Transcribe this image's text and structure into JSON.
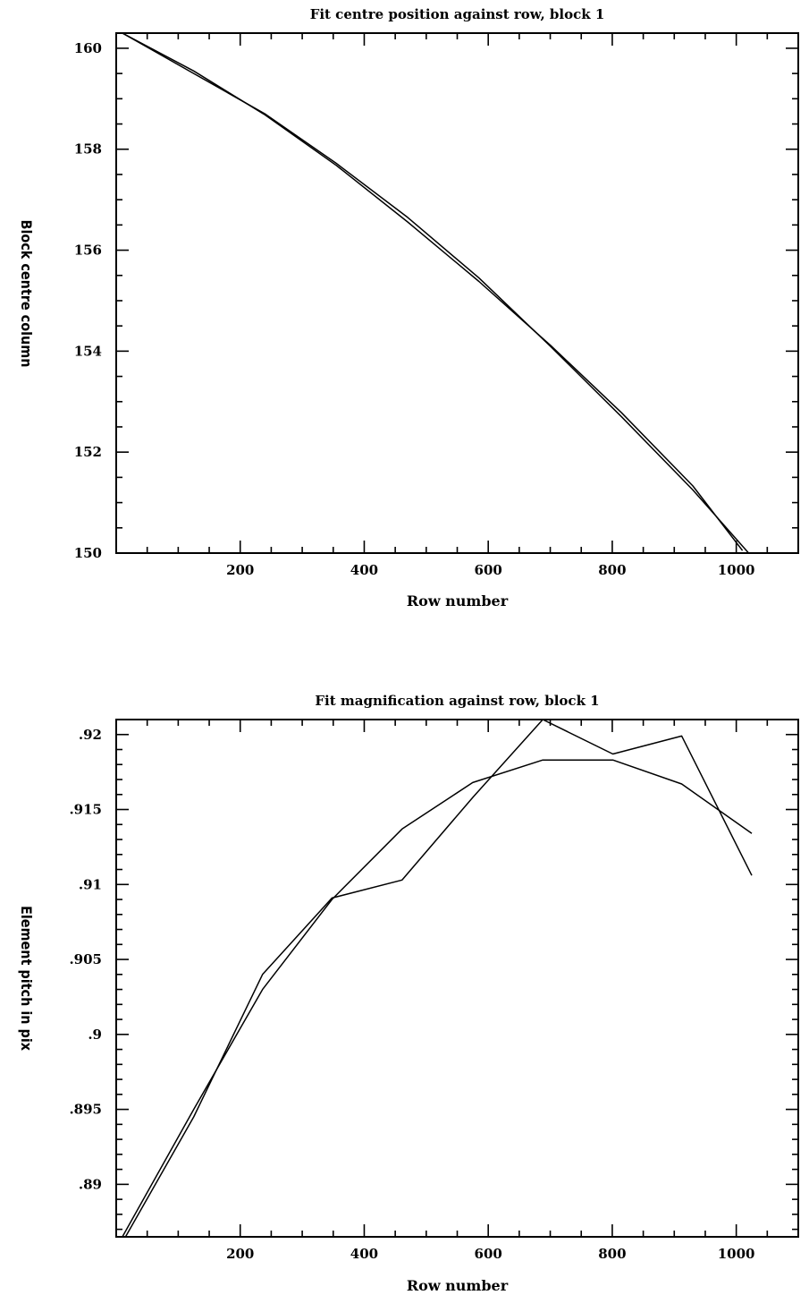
{
  "chart_data": [
    {
      "type": "line",
      "title": "Fit centre position against row, block 1",
      "xlabel": "Row number",
      "ylabel": "Block centre column",
      "xlim": [
        0,
        1100
      ],
      "ylim": [
        150,
        160.3
      ],
      "x_ticks": [
        200,
        400,
        600,
        800,
        1000
      ],
      "x_ticklabels": [
        "200",
        "400",
        "600",
        "800",
        "1000"
      ],
      "y_ticks": [
        150,
        152,
        154,
        156,
        158,
        160
      ],
      "y_ticklabels": [
        "150",
        "152",
        "154",
        "156",
        "158",
        "160"
      ],
      "grid": false,
      "series": [
        {
          "x": [
            10,
            125,
            240,
            355,
            470,
            585,
            700,
            815,
            930,
            1010
          ],
          "y": [
            160.3,
            159.55,
            158.68,
            157.68,
            156.56,
            155.38,
            154.12,
            152.78,
            151.33,
            150.05
          ]
        },
        {
          "x": [
            10,
            125,
            240,
            355,
            470,
            585,
            700,
            815,
            930,
            1020
          ],
          "y": [
            160.3,
            159.5,
            158.7,
            157.72,
            156.65,
            155.45,
            154.1,
            152.7,
            151.25,
            150.0
          ]
        }
      ]
    },
    {
      "type": "line",
      "title": "Fit magnification against row, block 1",
      "xlabel": "Row number",
      "ylabel": "Element pitch in pix",
      "xlim": [
        0,
        1100
      ],
      "ylim": [
        0.8865,
        0.921
      ],
      "x_ticks": [
        200,
        400,
        600,
        800,
        1000
      ],
      "x_ticklabels": [
        "200",
        "400",
        "600",
        "800",
        "1000"
      ],
      "y_ticks": [
        0.89,
        0.895,
        0.9,
        0.905,
        0.91,
        0.915,
        0.92
      ],
      "y_ticklabels": [
        ".89",
        ".895",
        ".9",
        ".905",
        ".91",
        ".915",
        ".92"
      ],
      "grid": false,
      "series": [
        {
          "x": [
            15,
            125,
            236,
            348,
            461,
            575,
            688,
            801,
            912,
            1025
          ],
          "y": [
            0.8865,
            0.8945,
            0.904,
            0.9091,
            0.9103,
            0.9158,
            0.921,
            0.9187,
            0.9199,
            0.9106
          ]
        },
        {
          "x": [
            10,
            125,
            236,
            348,
            461,
            575,
            688,
            801,
            912,
            1025
          ],
          "y": [
            0.8865,
            0.895,
            0.903,
            0.909,
            0.9137,
            0.9168,
            0.9183,
            0.9183,
            0.9167,
            0.9134
          ]
        }
      ]
    }
  ]
}
